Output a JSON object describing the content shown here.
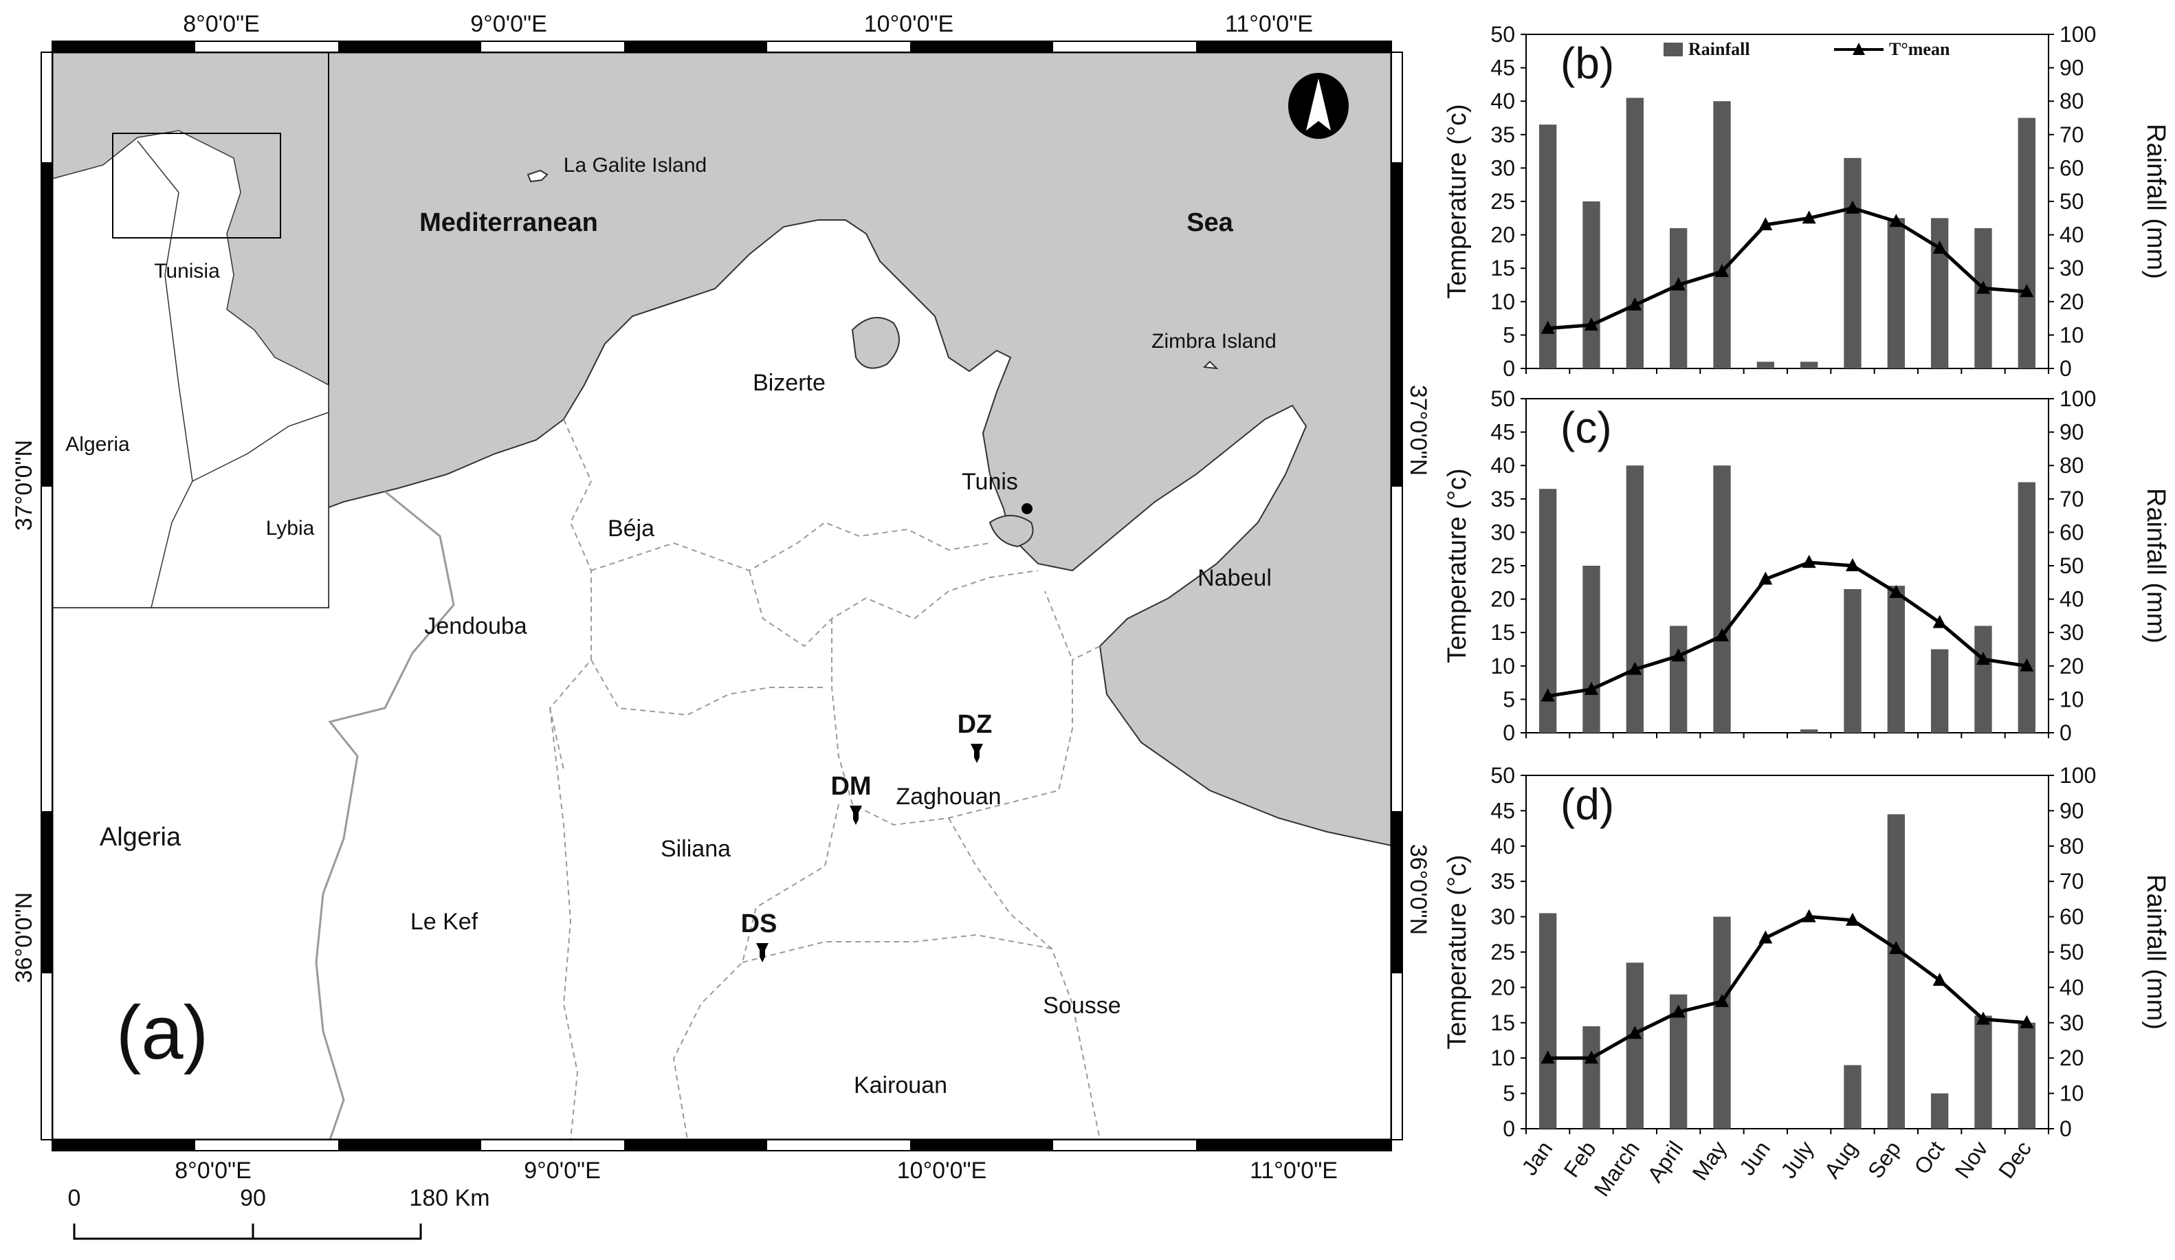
{
  "map": {
    "panel_label": "(a)",
    "longitude_labels": [
      "8°0'0\"E",
      "9°0'0\"E",
      "10°0'0\"E",
      "11°0'0\"E"
    ],
    "latitude_labels": [
      "37°0'0\"N",
      "36°0'0\"N"
    ],
    "sea_labels": [
      "Mediterranean",
      "Sea"
    ],
    "islands": [
      "La Galite Island",
      "Zimbra Island"
    ],
    "regions": [
      "Bizerte",
      "Tunis",
      "Béja",
      "Jendouba",
      "Nabeul",
      "Zaghouan",
      "Siliana",
      "Le Kef",
      "Kairouan",
      "Sousse",
      "Algeria"
    ],
    "sites": [
      "DZ",
      "DM",
      "DS"
    ],
    "inset_labels": [
      "Tunisia",
      "Algeria",
      "Lybia"
    ],
    "scale_bar": {
      "ticks": [
        "0",
        "90",
        "180 Km"
      ]
    },
    "colors": {
      "sea": "#c8c8c8",
      "land": "#ffffff",
      "boundary": "#9a9a9a"
    }
  },
  "chart_data": [
    {
      "type": "bar+line",
      "panel": "(b)",
      "categories": [
        "Jan",
        "Feb",
        "March",
        "April",
        "May",
        "Jun",
        "July",
        "Aug",
        "Sep",
        "Oct",
        "Nov",
        "Dec"
      ],
      "series": [
        {
          "name": "Rainfall",
          "axis": "right",
          "type": "bar",
          "values": [
            73,
            50,
            81,
            42,
            80,
            2,
            2,
            63,
            45,
            45,
            42,
            75
          ]
        },
        {
          "name": "T°mean",
          "axis": "left",
          "type": "line",
          "values": [
            6,
            6.5,
            9.5,
            12.5,
            14.5,
            21.5,
            22.5,
            24,
            22,
            18,
            12,
            11.5
          ]
        }
      ],
      "ylabel_left": "Temperature (°c)",
      "ylabel_right": "Rainfall (mm)",
      "ylim_left": [
        0,
        50
      ],
      "ylim_right": [
        0,
        100
      ],
      "yticks_left": [
        "0",
        "5",
        "10",
        "15",
        "20",
        "25",
        "30",
        "35",
        "40",
        "45",
        "50"
      ],
      "yticks_right": [
        "0",
        "10",
        "20",
        "30",
        "40",
        "50",
        "60",
        "70",
        "80",
        "90",
        "100"
      ],
      "legend": "top"
    },
    {
      "type": "bar+line",
      "panel": "(c)",
      "categories": [
        "Jan",
        "Feb",
        "March",
        "April",
        "May",
        "Jun",
        "July",
        "Aug",
        "Sep",
        "Oct",
        "Nov",
        "Dec"
      ],
      "series": [
        {
          "name": "Rainfall",
          "axis": "right",
          "type": "bar",
          "values": [
            73,
            50,
            80,
            32,
            80,
            0,
            1,
            43,
            44,
            25,
            32,
            75
          ]
        },
        {
          "name": "T°mean",
          "axis": "left",
          "type": "line",
          "values": [
            5.5,
            6.5,
            9.5,
            11.5,
            14.5,
            23,
            25.5,
            25,
            21,
            16.5,
            11,
            10
          ]
        }
      ],
      "ylabel_left": "Temperature (°c)",
      "ylabel_right": "Rainfall (mm)",
      "ylim_left": [
        0,
        50
      ],
      "ylim_right": [
        0,
        100
      ],
      "yticks_left": [
        "0",
        "5",
        "10",
        "15",
        "20",
        "25",
        "30",
        "35",
        "40",
        "45",
        "50"
      ],
      "yticks_right": [
        "0",
        "10",
        "20",
        "30",
        "40",
        "50",
        "60",
        "70",
        "80",
        "90",
        "100"
      ]
    },
    {
      "type": "bar+line",
      "panel": "(d)",
      "categories": [
        "Jan",
        "Feb",
        "March",
        "April",
        "May",
        "Jun",
        "July",
        "Aug",
        "Sep",
        "Oct",
        "Nov",
        "Dec"
      ],
      "series": [
        {
          "name": "Rainfall",
          "axis": "right",
          "type": "bar",
          "values": [
            61,
            29,
            47,
            38,
            60,
            0,
            0,
            18,
            89,
            10,
            32,
            30
          ]
        },
        {
          "name": "T°mean",
          "axis": "left",
          "type": "line",
          "values": [
            10,
            10,
            13.5,
            16.5,
            18,
            27,
            30,
            29.5,
            25.5,
            21,
            15.5,
            15
          ]
        }
      ],
      "ylabel_left": "Temperature (°c)",
      "ylabel_right": "Rainfall (mm)",
      "ylim_left": [
        0,
        50
      ],
      "ylim_right": [
        0,
        100
      ],
      "yticks_left": [
        "0",
        "5",
        "10",
        "15",
        "20",
        "25",
        "30",
        "35",
        "40",
        "45",
        "50"
      ],
      "yticks_right": [
        "0",
        "10",
        "20",
        "30",
        "40",
        "50",
        "60",
        "70",
        "80",
        "90",
        "100"
      ]
    }
  ],
  "colors": {
    "bar": "#595959",
    "line": "#000000",
    "axis": "#000000"
  }
}
